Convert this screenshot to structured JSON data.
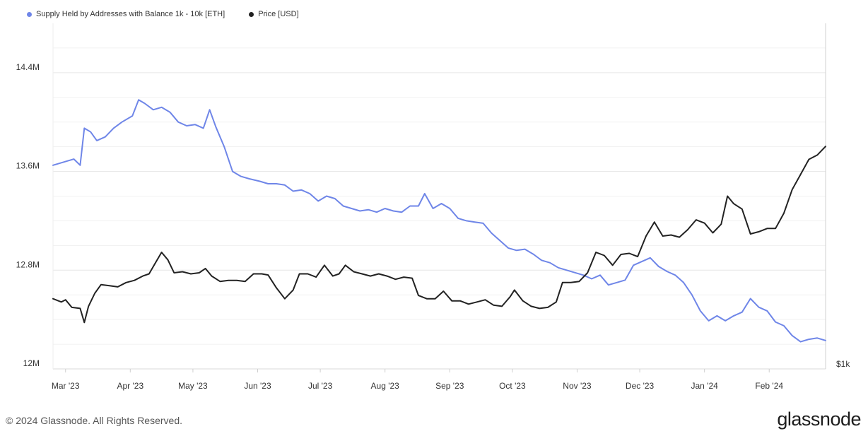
{
  "legend": [
    {
      "label": "Supply Held by Addresses with Balance 1k - 10k [ETH]",
      "color": "#6f86e8"
    },
    {
      "label": "Price [USD]",
      "color": "#222222"
    }
  ],
  "footer": {
    "copyright": "© 2024 Glassnode. All Rights Reserved.",
    "brand": "glassnode"
  },
  "chart_data": {
    "type": "line",
    "grid": true,
    "y_left": {
      "ticks": [
        {
          "value": 12000000,
          "label": "12M"
        },
        {
          "value": 12800000,
          "label": "12.8M"
        },
        {
          "value": 13600000,
          "label": "13.6M"
        },
        {
          "value": 14400000,
          "label": "14.4M"
        }
      ],
      "range": [
        12000000,
        14800000
      ]
    },
    "y_right": {
      "ticks": [
        {
          "value": 1000,
          "label": "$1k"
        }
      ],
      "range": [
        1000,
        4200
      ]
    },
    "x_ticks": [
      "Mar '23",
      "Apr '23",
      "May '23",
      "Jun '23",
      "Jul '23",
      "Aug '23",
      "Sep '23",
      "Oct '23",
      "Nov '23",
      "Dec '23",
      "Jan '24",
      "Feb '24"
    ],
    "x_range": [
      "2023-02-23",
      "2024-02-28"
    ],
    "series": [
      {
        "name": "Supply Held by Addresses with Balance 1k - 10k [ETH]",
        "axis": "left",
        "color": "#6f86e8",
        "points": [
          [
            "2023-02-23",
            13650000
          ],
          [
            "2023-03-01",
            13680000
          ],
          [
            "2023-03-05",
            13700000
          ],
          [
            "2023-03-08",
            13650000
          ],
          [
            "2023-03-10",
            13950000
          ],
          [
            "2023-03-13",
            13920000
          ],
          [
            "2023-03-16",
            13850000
          ],
          [
            "2023-03-20",
            13880000
          ],
          [
            "2023-03-24",
            13950000
          ],
          [
            "2023-03-28",
            14000000
          ],
          [
            "2023-04-02",
            14050000
          ],
          [
            "2023-04-05",
            14180000
          ],
          [
            "2023-04-08",
            14150000
          ],
          [
            "2023-04-12",
            14100000
          ],
          [
            "2023-04-16",
            14120000
          ],
          [
            "2023-04-20",
            14080000
          ],
          [
            "2023-04-24",
            14000000
          ],
          [
            "2023-04-28",
            13970000
          ],
          [
            "2023-05-02",
            13980000
          ],
          [
            "2023-05-06",
            13950000
          ],
          [
            "2023-05-09",
            14100000
          ],
          [
            "2023-05-12",
            13960000
          ],
          [
            "2023-05-16",
            13800000
          ],
          [
            "2023-05-20",
            13600000
          ],
          [
            "2023-05-24",
            13560000
          ],
          [
            "2023-05-28",
            13540000
          ],
          [
            "2023-06-02",
            13520000
          ],
          [
            "2023-06-06",
            13500000
          ],
          [
            "2023-06-10",
            13500000
          ],
          [
            "2023-06-14",
            13490000
          ],
          [
            "2023-06-18",
            13440000
          ],
          [
            "2023-06-22",
            13450000
          ],
          [
            "2023-06-26",
            13420000
          ],
          [
            "2023-06-30",
            13360000
          ],
          [
            "2023-07-04",
            13400000
          ],
          [
            "2023-07-08",
            13380000
          ],
          [
            "2023-07-12",
            13320000
          ],
          [
            "2023-07-16",
            13300000
          ],
          [
            "2023-07-20",
            13280000
          ],
          [
            "2023-07-24",
            13290000
          ],
          [
            "2023-07-28",
            13270000
          ],
          [
            "2023-08-01",
            13300000
          ],
          [
            "2023-08-05",
            13280000
          ],
          [
            "2023-08-09",
            13270000
          ],
          [
            "2023-08-13",
            13320000
          ],
          [
            "2023-08-17",
            13320000
          ],
          [
            "2023-08-20",
            13420000
          ],
          [
            "2023-08-24",
            13300000
          ],
          [
            "2023-08-28",
            13340000
          ],
          [
            "2023-09-01",
            13300000
          ],
          [
            "2023-09-05",
            13220000
          ],
          [
            "2023-09-09",
            13200000
          ],
          [
            "2023-09-13",
            13190000
          ],
          [
            "2023-09-17",
            13180000
          ],
          [
            "2023-09-21",
            13100000
          ],
          [
            "2023-09-25",
            13040000
          ],
          [
            "2023-09-29",
            12980000
          ],
          [
            "2023-10-03",
            12960000
          ],
          [
            "2023-10-07",
            12970000
          ],
          [
            "2023-10-11",
            12930000
          ],
          [
            "2023-10-15",
            12880000
          ],
          [
            "2023-10-19",
            12860000
          ],
          [
            "2023-10-23",
            12820000
          ],
          [
            "2023-10-27",
            12800000
          ],
          [
            "2023-10-31",
            12780000
          ],
          [
            "2023-11-04",
            12760000
          ],
          [
            "2023-11-08",
            12730000
          ],
          [
            "2023-11-12",
            12760000
          ],
          [
            "2023-11-16",
            12680000
          ],
          [
            "2023-11-20",
            12700000
          ],
          [
            "2023-11-24",
            12720000
          ],
          [
            "2023-11-28",
            12840000
          ],
          [
            "2023-12-02",
            12870000
          ],
          [
            "2023-12-06",
            12900000
          ],
          [
            "2023-12-10",
            12830000
          ],
          [
            "2023-12-14",
            12790000
          ],
          [
            "2023-12-18",
            12760000
          ],
          [
            "2023-12-22",
            12700000
          ],
          [
            "2023-12-26",
            12600000
          ],
          [
            "2023-12-30",
            12470000
          ],
          [
            "2024-01-03",
            12390000
          ],
          [
            "2024-01-07",
            12430000
          ],
          [
            "2024-01-11",
            12390000
          ],
          [
            "2024-01-15",
            12430000
          ],
          [
            "2024-01-19",
            12460000
          ],
          [
            "2024-01-23",
            12570000
          ],
          [
            "2024-01-27",
            12500000
          ],
          [
            "2024-01-31",
            12470000
          ],
          [
            "2024-02-04",
            12380000
          ],
          [
            "2024-02-08",
            12350000
          ],
          [
            "2024-02-12",
            12270000
          ],
          [
            "2024-02-16",
            12220000
          ],
          [
            "2024-02-20",
            12240000
          ],
          [
            "2024-02-24",
            12250000
          ],
          [
            "2024-02-28",
            12230000
          ]
        ]
      },
      {
        "name": "Price [USD]",
        "axis": "right",
        "color": "#222222",
        "points": [
          [
            "2023-02-23",
            1650
          ],
          [
            "2023-02-27",
            1620
          ],
          [
            "2023-03-01",
            1640
          ],
          [
            "2023-03-04",
            1570
          ],
          [
            "2023-03-08",
            1560
          ],
          [
            "2023-03-10",
            1430
          ],
          [
            "2023-03-12",
            1580
          ],
          [
            "2023-03-15",
            1700
          ],
          [
            "2023-03-18",
            1780
          ],
          [
            "2023-03-22",
            1770
          ],
          [
            "2023-03-26",
            1760
          ],
          [
            "2023-03-30",
            1800
          ],
          [
            "2023-04-03",
            1820
          ],
          [
            "2023-04-07",
            1860
          ],
          [
            "2023-04-10",
            1880
          ],
          [
            "2023-04-13",
            1980
          ],
          [
            "2023-04-16",
            2080
          ],
          [
            "2023-04-19",
            2010
          ],
          [
            "2023-04-22",
            1890
          ],
          [
            "2023-04-26",
            1900
          ],
          [
            "2023-04-30",
            1880
          ],
          [
            "2023-05-04",
            1890
          ],
          [
            "2023-05-07",
            1930
          ],
          [
            "2023-05-10",
            1860
          ],
          [
            "2023-05-14",
            1810
          ],
          [
            "2023-05-18",
            1820
          ],
          [
            "2023-05-22",
            1820
          ],
          [
            "2023-05-26",
            1810
          ],
          [
            "2023-05-30",
            1880
          ],
          [
            "2023-06-03",
            1880
          ],
          [
            "2023-06-06",
            1870
          ],
          [
            "2023-06-10",
            1750
          ],
          [
            "2023-06-14",
            1650
          ],
          [
            "2023-06-18",
            1730
          ],
          [
            "2023-06-21",
            1880
          ],
          [
            "2023-06-25",
            1880
          ],
          [
            "2023-06-29",
            1850
          ],
          [
            "2023-07-03",
            1960
          ],
          [
            "2023-07-07",
            1860
          ],
          [
            "2023-07-10",
            1880
          ],
          [
            "2023-07-13",
            1960
          ],
          [
            "2023-07-17",
            1900
          ],
          [
            "2023-07-21",
            1880
          ],
          [
            "2023-07-25",
            1860
          ],
          [
            "2023-07-29",
            1880
          ],
          [
            "2023-08-02",
            1860
          ],
          [
            "2023-08-06",
            1830
          ],
          [
            "2023-08-10",
            1850
          ],
          [
            "2023-08-14",
            1840
          ],
          [
            "2023-08-17",
            1680
          ],
          [
            "2023-08-21",
            1650
          ],
          [
            "2023-08-25",
            1650
          ],
          [
            "2023-08-29",
            1720
          ],
          [
            "2023-09-02",
            1630
          ],
          [
            "2023-09-06",
            1630
          ],
          [
            "2023-09-10",
            1600
          ],
          [
            "2023-09-14",
            1620
          ],
          [
            "2023-09-18",
            1640
          ],
          [
            "2023-09-22",
            1590
          ],
          [
            "2023-09-26",
            1580
          ],
          [
            "2023-09-30",
            1670
          ],
          [
            "2023-10-02",
            1730
          ],
          [
            "2023-10-06",
            1630
          ],
          [
            "2023-10-10",
            1580
          ],
          [
            "2023-10-14",
            1560
          ],
          [
            "2023-10-18",
            1570
          ],
          [
            "2023-10-22",
            1620
          ],
          [
            "2023-10-25",
            1800
          ],
          [
            "2023-10-29",
            1800
          ],
          [
            "2023-11-02",
            1810
          ],
          [
            "2023-11-06",
            1890
          ],
          [
            "2023-11-10",
            2080
          ],
          [
            "2023-11-14",
            2050
          ],
          [
            "2023-11-18",
            1960
          ],
          [
            "2023-11-22",
            2060
          ],
          [
            "2023-11-26",
            2070
          ],
          [
            "2023-11-30",
            2040
          ],
          [
            "2023-12-04",
            2230
          ],
          [
            "2023-12-08",
            2360
          ],
          [
            "2023-12-12",
            2230
          ],
          [
            "2023-12-16",
            2240
          ],
          [
            "2023-12-20",
            2220
          ],
          [
            "2023-12-24",
            2290
          ],
          [
            "2023-12-28",
            2380
          ],
          [
            "2024-01-01",
            2350
          ],
          [
            "2024-01-05",
            2260
          ],
          [
            "2024-01-09",
            2340
          ],
          [
            "2024-01-12",
            2600
          ],
          [
            "2024-01-15",
            2530
          ],
          [
            "2024-01-19",
            2480
          ],
          [
            "2024-01-23",
            2250
          ],
          [
            "2024-01-27",
            2270
          ],
          [
            "2024-01-31",
            2300
          ],
          [
            "2024-02-04",
            2300
          ],
          [
            "2024-02-08",
            2440
          ],
          [
            "2024-02-12",
            2660
          ],
          [
            "2024-02-16",
            2800
          ],
          [
            "2024-02-20",
            2940
          ],
          [
            "2024-02-24",
            2980
          ],
          [
            "2024-02-28",
            3060
          ]
        ]
      }
    ]
  }
}
